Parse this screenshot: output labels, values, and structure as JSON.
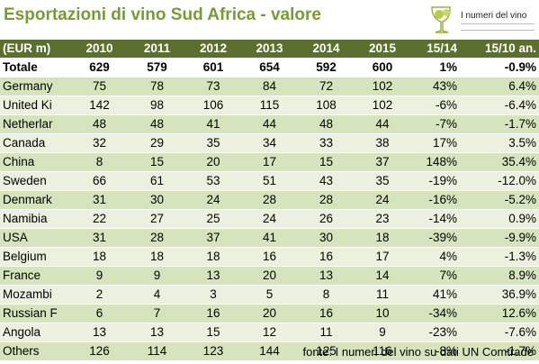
{
  "title": "Esportazioni di vino Sud Africa - valore",
  "logo_text": "I numeri del vino",
  "source": "fonte: I numeri del vino su dati UN Comtrade",
  "colors": {
    "title": "#7a9a3a",
    "header_bg": "#5b6f2f",
    "row_dark": "#d6e4bd",
    "row_light": "#ebf1de"
  },
  "chart_data": {
    "type": "table",
    "columns": [
      "(EUR m)",
      "2010",
      "2011",
      "2012",
      "2013",
      "2014",
      "2015",
      "15/14",
      "15/10 an."
    ],
    "rows": [
      [
        "Totale",
        "629",
        "579",
        "601",
        "654",
        "592",
        "600",
        "1%",
        "-0.9%"
      ],
      [
        "Germany",
        "75",
        "78",
        "73",
        "84",
        "72",
        "102",
        "43%",
        "6.4%"
      ],
      [
        "United Ki",
        "142",
        "98",
        "106",
        "115",
        "108",
        "102",
        "-6%",
        "-6.4%"
      ],
      [
        "Netherlar",
        "48",
        "48",
        "41",
        "44",
        "48",
        "44",
        "-7%",
        "-1.7%"
      ],
      [
        "Canada",
        "32",
        "29",
        "35",
        "34",
        "33",
        "38",
        "17%",
        "3.5%"
      ],
      [
        "China",
        "8",
        "15",
        "20",
        "17",
        "15",
        "37",
        "148%",
        "35.4%"
      ],
      [
        "Sweden",
        "66",
        "61",
        "53",
        "51",
        "43",
        "35",
        "-19%",
        "-12.0%"
      ],
      [
        "Denmark",
        "31",
        "30",
        "24",
        "28",
        "28",
        "24",
        "-16%",
        "-5.2%"
      ],
      [
        "Namibia",
        "22",
        "27",
        "25",
        "24",
        "26",
        "23",
        "-14%",
        "0.9%"
      ],
      [
        "USA",
        "31",
        "28",
        "37",
        "41",
        "30",
        "18",
        "-39%",
        "-9.9%"
      ],
      [
        "Belgium",
        "18",
        "18",
        "18",
        "16",
        "16",
        "17",
        "4%",
        "-1.3%"
      ],
      [
        "France",
        "9",
        "9",
        "13",
        "20",
        "13",
        "14",
        "7%",
        "8.9%"
      ],
      [
        "Mozambi",
        "2",
        "4",
        "3",
        "5",
        "8",
        "11",
        "41%",
        "36.9%"
      ],
      [
        "Russian F",
        "6",
        "7",
        "16",
        "20",
        "16",
        "10",
        "-34%",
        "12.6%"
      ],
      [
        "Angola",
        "13",
        "13",
        "15",
        "12",
        "11",
        "9",
        "-23%",
        "-7.6%"
      ],
      [
        "Others",
        "126",
        "114",
        "123",
        "144",
        "125",
        "116",
        "-8%",
        "-1.7%"
      ]
    ]
  }
}
